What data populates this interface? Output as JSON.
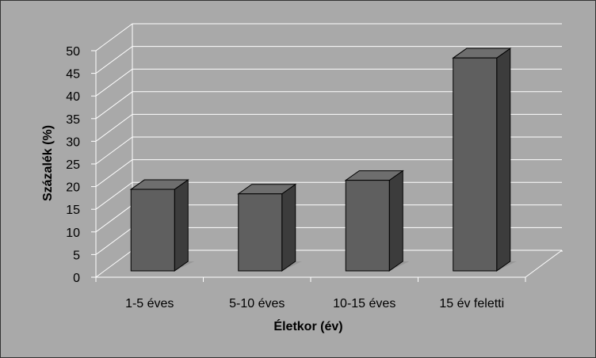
{
  "chart_data": {
    "type": "bar",
    "style": "3d-column",
    "categories": [
      "1-5 éves",
      "5-10 éves",
      "10-15 éves",
      "15 év feletti"
    ],
    "values": [
      18,
      17,
      20,
      47
    ],
    "xlabel": "Életkor (év)",
    "ylabel": "Százalék (%)",
    "ylim": [
      0,
      50
    ],
    "yticks": [
      0,
      5,
      10,
      15,
      20,
      25,
      30,
      35,
      40,
      45,
      50
    ],
    "grid": true,
    "legend": "none",
    "colors": {
      "background": "#a9a9a9",
      "bar_front": "#5f5f5f",
      "bar_top": "#6e6e6e",
      "bar_side": "#3c3c3c",
      "grid": "#ffffff",
      "floor_shadow": "#8c8c8c"
    }
  }
}
